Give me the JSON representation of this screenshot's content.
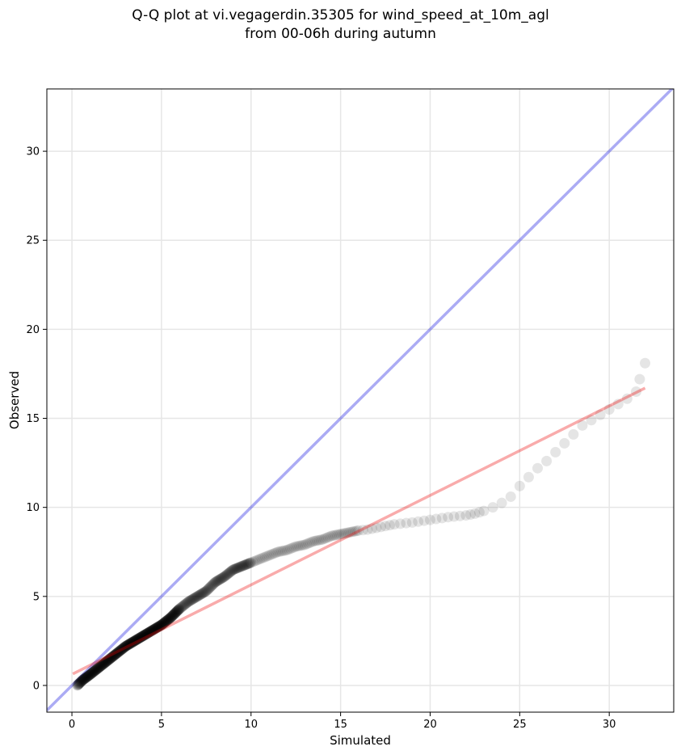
{
  "chart_data": {
    "type": "scatter",
    "title": [
      "Q-Q plot at vi.vegagerdin.35305 for wind_speed_at_10m_agl",
      "from 00-06h during autumn"
    ],
    "xlabel": "Simulated",
    "ylabel": "Observed",
    "xlim": [
      -1.4,
      33.6
    ],
    "ylim": [
      -1.5,
      33.5
    ],
    "xticks": [
      0,
      5,
      10,
      15,
      20,
      25,
      30
    ],
    "yticks": [
      0,
      5,
      10,
      15,
      20,
      25,
      30
    ],
    "grid": true,
    "colors": {
      "points": "#000000",
      "identity_line": "#0000dd",
      "fit_line": "#ee0000",
      "grid": "#e6e6e6"
    },
    "identity_line": {
      "x": [
        -1.4,
        33.6
      ],
      "y": [
        -1.4,
        33.6
      ]
    },
    "fit_line": {
      "x": [
        0.05,
        32.0
      ],
      "y": [
        0.65,
        16.7
      ]
    },
    "qq_curve": {
      "x": [
        0.3,
        0.6,
        1.0,
        1.5,
        2.0,
        2.5,
        3.0,
        3.5,
        4.0,
        4.5,
        5.0,
        5.5,
        6.0,
        6.5,
        7.0,
        7.5,
        8.0,
        8.5,
        9.0,
        9.5,
        10.0,
        10.5,
        11.0,
        11.5,
        12.0,
        12.5,
        13.0,
        13.5,
        14.0,
        14.5,
        15.0,
        15.5,
        16.0,
        16.5,
        17.0,
        17.5,
        18.0,
        19.0,
        20.0,
        21.0,
        22.0,
        22.5,
        23.0,
        23.5,
        24.0,
        24.5,
        25.0,
        25.5,
        26.0,
        26.5,
        27.0,
        27.5,
        28.0,
        28.5,
        29.0,
        29.5,
        30.0,
        30.5,
        31.0,
        31.5,
        31.7,
        32.0
      ],
      "y": [
        0.0,
        0.3,
        0.6,
        1.0,
        1.4,
        1.8,
        2.2,
        2.5,
        2.8,
        3.1,
        3.4,
        3.8,
        4.3,
        4.7,
        5.0,
        5.3,
        5.8,
        6.1,
        6.5,
        6.7,
        6.9,
        7.1,
        7.3,
        7.5,
        7.6,
        7.8,
        7.9,
        8.1,
        8.2,
        8.4,
        8.5,
        8.6,
        8.7,
        8.75,
        8.85,
        8.95,
        9.05,
        9.15,
        9.3,
        9.45,
        9.55,
        9.65,
        9.8,
        10.0,
        10.25,
        10.6,
        11.2,
        11.7,
        12.2,
        12.6,
        13.1,
        13.6,
        14.1,
        14.6,
        14.9,
        15.2,
        15.5,
        15.8,
        16.1,
        16.5,
        17.2,
        18.1
      ]
    }
  }
}
